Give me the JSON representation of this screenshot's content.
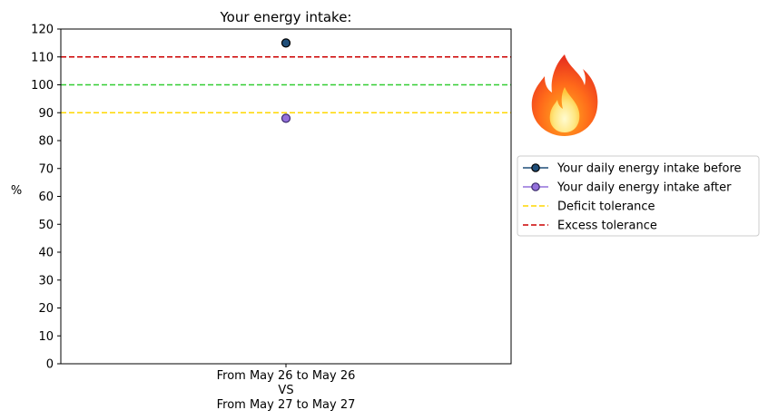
{
  "chart_data": {
    "type": "scatter",
    "title": "Your energy intake:",
    "ylabel": "%",
    "xlabel": "",
    "ylim": [
      0,
      120
    ],
    "yticks": [
      0,
      10,
      20,
      30,
      40,
      50,
      60,
      70,
      80,
      90,
      100,
      110,
      120
    ],
    "categories": [
      "From May 26 to May 26\nVS\nFrom May 27 to May 27"
    ],
    "grid": false,
    "legend_position": "right",
    "series": [
      {
        "name": "Your daily energy intake before",
        "values": [
          115
        ],
        "color": "#1f4e79",
        "edge": "#000000",
        "marker": "circle"
      },
      {
        "name": "Your daily energy intake after",
        "values": [
          88
        ],
        "color": "#9370db",
        "edge": "#3a2a6b",
        "marker": "circle"
      }
    ],
    "reference_lines": [
      {
        "name": "Deficit tolerance",
        "y": 90,
        "color": "#ffd700",
        "dash": true,
        "in_legend": true
      },
      {
        "name": "",
        "y": 100,
        "color": "#32cd32",
        "dash": true,
        "in_legend": false
      },
      {
        "name": "Excess tolerance",
        "y": 110,
        "color": "#cc0000",
        "dash": true,
        "in_legend": true
      }
    ]
  },
  "decoration": {
    "icon": "fire-icon"
  }
}
